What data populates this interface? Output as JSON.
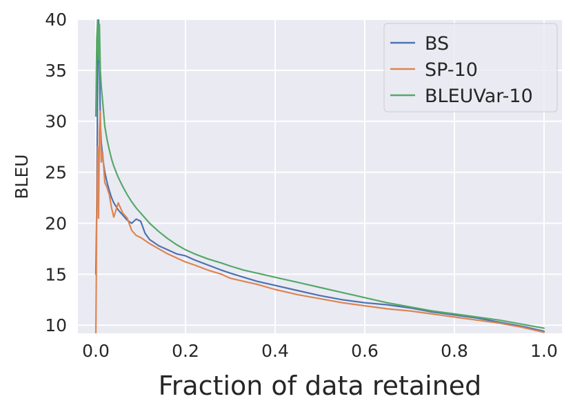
{
  "chart_data": {
    "type": "line",
    "title": "",
    "xlabel": "Fraction of data retained",
    "ylabel": "BLEU",
    "xlim": [
      -0.04,
      1.04
    ],
    "ylim": [
      9.2,
      40
    ],
    "xticks": [
      0.0,
      0.2,
      0.4,
      0.6,
      0.8,
      1.0
    ],
    "xtick_labels": [
      "0.0",
      "0.2",
      "0.4",
      "0.6",
      "0.8",
      "1.0"
    ],
    "yticks": [
      10,
      15,
      20,
      25,
      30,
      35,
      40
    ],
    "ytick_labels": [
      "10",
      "15",
      "20",
      "25",
      "30",
      "35",
      "40"
    ],
    "grid": true,
    "legend_position": "top-right",
    "background": "#eaeaf2",
    "series": [
      {
        "name": "BS",
        "color": "#4c72b0",
        "x": [
          0.0,
          0.002,
          0.004,
          0.006,
          0.008,
          0.01,
          0.012,
          0.015,
          0.02,
          0.025,
          0.03,
          0.035,
          0.04,
          0.05,
          0.06,
          0.07,
          0.08,
          0.09,
          0.1,
          0.11,
          0.12,
          0.14,
          0.16,
          0.18,
          0.2,
          0.22,
          0.25,
          0.28,
          0.3,
          0.33,
          0.36,
          0.4,
          0.45,
          0.5,
          0.55,
          0.6,
          0.65,
          0.7,
          0.75,
          0.8,
          0.85,
          0.9,
          0.95,
          1.0
        ],
        "y": [
          15.0,
          22.0,
          34.0,
          40.0,
          36.5,
          30.0,
          28.0,
          26.5,
          25.0,
          24.0,
          23.2,
          22.5,
          22.0,
          21.3,
          20.8,
          20.3,
          20.0,
          20.4,
          20.2,
          19.0,
          18.4,
          17.8,
          17.4,
          17.0,
          16.8,
          16.4,
          15.9,
          15.4,
          15.1,
          14.7,
          14.3,
          13.9,
          13.4,
          12.9,
          12.5,
          12.2,
          12.0,
          11.7,
          11.3,
          11.0,
          10.7,
          10.3,
          9.9,
          9.4
        ]
      },
      {
        "name": "SP-10",
        "color": "#dd8452",
        "x": [
          0.0,
          0.002,
          0.004,
          0.006,
          0.008,
          0.01,
          0.012,
          0.015,
          0.02,
          0.025,
          0.03,
          0.035,
          0.04,
          0.05,
          0.06,
          0.07,
          0.08,
          0.09,
          0.1,
          0.11,
          0.12,
          0.14,
          0.16,
          0.18,
          0.2,
          0.22,
          0.25,
          0.28,
          0.3,
          0.33,
          0.36,
          0.4,
          0.45,
          0.5,
          0.55,
          0.6,
          0.65,
          0.7,
          0.75,
          0.8,
          0.85,
          0.9,
          0.95,
          1.0
        ],
        "y": [
          9.0,
          21.0,
          27.5,
          20.5,
          29.0,
          31.0,
          26.0,
          27.0,
          24.0,
          23.5,
          22.8,
          21.5,
          20.6,
          22.0,
          21.0,
          20.5,
          19.3,
          18.8,
          18.6,
          18.3,
          18.0,
          17.5,
          17.0,
          16.6,
          16.2,
          15.9,
          15.4,
          15.0,
          14.6,
          14.3,
          14.0,
          13.5,
          13.0,
          12.6,
          12.2,
          11.9,
          11.6,
          11.4,
          11.1,
          10.8,
          10.5,
          10.2,
          9.8,
          9.3
        ]
      },
      {
        "name": "BLEUVar-10",
        "color": "#55a868",
        "x": [
          0.0,
          0.002,
          0.004,
          0.006,
          0.008,
          0.01,
          0.012,
          0.015,
          0.02,
          0.025,
          0.03,
          0.035,
          0.04,
          0.05,
          0.06,
          0.07,
          0.08,
          0.09,
          0.1,
          0.11,
          0.12,
          0.14,
          0.16,
          0.18,
          0.2,
          0.22,
          0.25,
          0.28,
          0.3,
          0.33,
          0.36,
          0.4,
          0.45,
          0.5,
          0.55,
          0.6,
          0.65,
          0.7,
          0.75,
          0.8,
          0.85,
          0.9,
          0.95,
          1.0
        ],
        "y": [
          30.5,
          38.0,
          40.0,
          36.0,
          39.5,
          35.0,
          33.5,
          32.0,
          29.5,
          28.2,
          27.2,
          26.3,
          25.6,
          24.5,
          23.6,
          22.8,
          22.1,
          21.5,
          21.0,
          20.5,
          20.0,
          19.2,
          18.5,
          17.9,
          17.4,
          17.0,
          16.5,
          16.1,
          15.8,
          15.4,
          15.1,
          14.7,
          14.2,
          13.7,
          13.2,
          12.7,
          12.2,
          11.8,
          11.4,
          11.1,
          10.8,
          10.5,
          10.1,
          9.7
        ]
      }
    ]
  }
}
